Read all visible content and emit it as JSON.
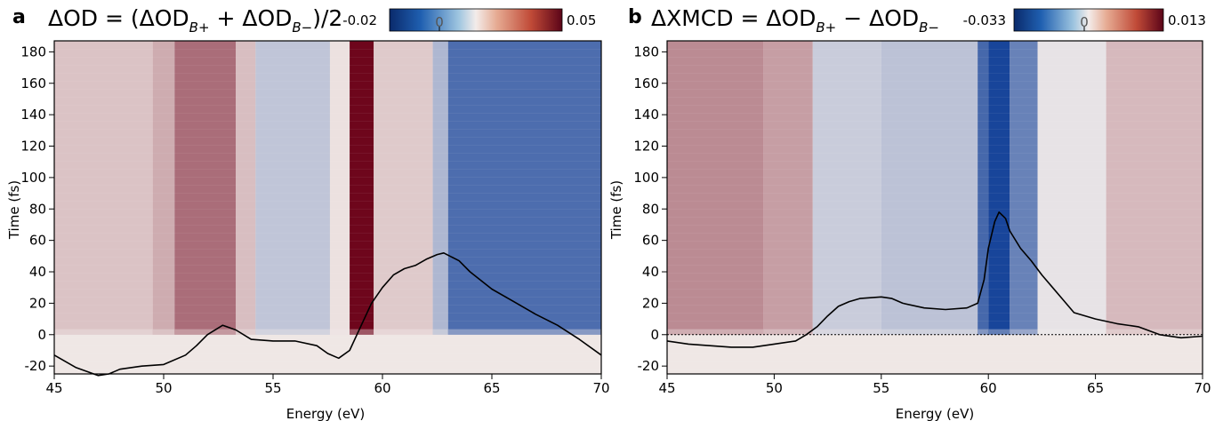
{
  "chart_data": [
    {
      "panel": "a",
      "type": "heatmap",
      "title": "ΔOD = (ΔOD_{B+} + ΔOD_{B−})/2",
      "title_parts": {
        "a": "ΔOD = (ΔOD",
        "b": "B+",
        "c": " + ΔOD",
        "d": "B−",
        "e": ")/2"
      },
      "xlabel": "Energy (eV)",
      "ylabel": "Time (fs)",
      "xlim": [
        45,
        70
      ],
      "ylim": [
        -25,
        187
      ],
      "xticks": [
        45,
        50,
        55,
        60,
        65,
        70
      ],
      "yticks": [
        -20,
        0,
        20,
        40,
        60,
        80,
        100,
        120,
        140,
        160,
        180
      ],
      "colorbar": {
        "min": "-0.02",
        "zero": "0",
        "max": "0.05",
        "colormap": "blue-white-red"
      },
      "heatmap_bands": [
        {
          "from": 45.0,
          "to": 49.5,
          "value": 0.18
        },
        {
          "from": 49.5,
          "to": 50.5,
          "value": 0.28
        },
        {
          "from": 50.5,
          "to": 53.3,
          "value": 0.55
        },
        {
          "from": 53.3,
          "to": 54.2,
          "value": 0.2
        },
        {
          "from": 54.2,
          "to": 57.6,
          "value": -0.22
        },
        {
          "from": 57.6,
          "to": 58.5,
          "value": 0.05
        },
        {
          "from": 58.5,
          "to": 59.6,
          "value": 1.0
        },
        {
          "from": 59.6,
          "to": 62.3,
          "value": 0.15
        },
        {
          "from": 62.3,
          "to": 63.0,
          "value": -0.3
        },
        {
          "from": 63.0,
          "to": 70.0,
          "value": -0.72
        }
      ],
      "onset_fs": 0,
      "spectrum_curve": [
        [
          45.0,
          -13
        ],
        [
          46.0,
          -21
        ],
        [
          47.0,
          -26
        ],
        [
          47.5,
          -25
        ],
        [
          48.0,
          -22
        ],
        [
          49.0,
          -20
        ],
        [
          50.0,
          -19
        ],
        [
          51.0,
          -13
        ],
        [
          51.5,
          -7
        ],
        [
          52.0,
          0
        ],
        [
          52.7,
          6
        ],
        [
          53.3,
          3
        ],
        [
          54.0,
          -3
        ],
        [
          55.0,
          -4
        ],
        [
          56.0,
          -4
        ],
        [
          57.0,
          -7
        ],
        [
          57.5,
          -12
        ],
        [
          58.0,
          -15
        ],
        [
          58.5,
          -10
        ],
        [
          59.0,
          5
        ],
        [
          59.5,
          20
        ],
        [
          60.0,
          30
        ],
        [
          60.5,
          38
        ],
        [
          61.0,
          42
        ],
        [
          61.5,
          44
        ],
        [
          62.0,
          48
        ],
        [
          62.5,
          51
        ],
        [
          62.8,
          52
        ],
        [
          63.5,
          47
        ],
        [
          64.0,
          40
        ],
        [
          65.0,
          29
        ],
        [
          66.0,
          21
        ],
        [
          67.0,
          13
        ],
        [
          68.0,
          6
        ],
        [
          69.0,
          -3
        ],
        [
          70.0,
          -13
        ]
      ]
    },
    {
      "panel": "b",
      "type": "heatmap",
      "title": "ΔXMCD = ΔOD_{B+} − ΔOD_{B−}",
      "title_parts": {
        "a": "ΔXMCD = ΔOD",
        "b": "B+",
        "c": " − ΔOD",
        "d": "B−",
        "e": ""
      },
      "xlabel": "Energy (eV)",
      "ylabel": "Time (fs)",
      "xlim": [
        45,
        70
      ],
      "ylim": [
        -25,
        187
      ],
      "xticks": [
        45,
        50,
        55,
        60,
        65,
        70
      ],
      "yticks": [
        -20,
        0,
        20,
        40,
        60,
        80,
        100,
        120,
        140,
        160,
        180
      ],
      "colorbar": {
        "min": "-0.033",
        "zero": "0",
        "max": "0.013",
        "colormap": "blue-white-red"
      },
      "heatmap_bands": [
        {
          "from": 45.0,
          "to": 49.5,
          "value": 0.42
        },
        {
          "from": 49.5,
          "to": 51.8,
          "value": 0.34
        },
        {
          "from": 51.8,
          "to": 55.0,
          "value": -0.18
        },
        {
          "from": 55.0,
          "to": 59.5,
          "value": -0.24
        },
        {
          "from": 59.5,
          "to": 60.0,
          "value": -0.75
        },
        {
          "from": 60.0,
          "to": 61.0,
          "value": -0.95
        },
        {
          "from": 61.0,
          "to": 62.3,
          "value": -0.6
        },
        {
          "from": 62.3,
          "to": 65.5,
          "value": -0.05
        },
        {
          "from": 65.5,
          "to": 70.0,
          "value": 0.22
        }
      ],
      "onset_fs": 0,
      "zero_line": true,
      "spectrum_curve": [
        [
          45.0,
          -4
        ],
        [
          46.0,
          -6
        ],
        [
          47.0,
          -7
        ],
        [
          48.0,
          -8
        ],
        [
          49.0,
          -8
        ],
        [
          50.0,
          -6
        ],
        [
          51.0,
          -4
        ],
        [
          51.5,
          0
        ],
        [
          52.0,
          5
        ],
        [
          52.5,
          12
        ],
        [
          53.0,
          18
        ],
        [
          53.5,
          21
        ],
        [
          54.0,
          23
        ],
        [
          55.0,
          24
        ],
        [
          55.5,
          23
        ],
        [
          56.0,
          20
        ],
        [
          57.0,
          17
        ],
        [
          58.0,
          16
        ],
        [
          59.0,
          17
        ],
        [
          59.5,
          20
        ],
        [
          59.8,
          35
        ],
        [
          60.0,
          55
        ],
        [
          60.3,
          72
        ],
        [
          60.5,
          78
        ],
        [
          60.8,
          74
        ],
        [
          61.0,
          66
        ],
        [
          61.5,
          55
        ],
        [
          62.0,
          47
        ],
        [
          62.5,
          38
        ],
        [
          63.0,
          30
        ],
        [
          63.5,
          22
        ],
        [
          64.0,
          14
        ],
        [
          65.0,
          10
        ],
        [
          66.0,
          7
        ],
        [
          67.0,
          5
        ],
        [
          68.0,
          0
        ],
        [
          69.0,
          -2
        ],
        [
          70.0,
          -1
        ]
      ]
    }
  ]
}
